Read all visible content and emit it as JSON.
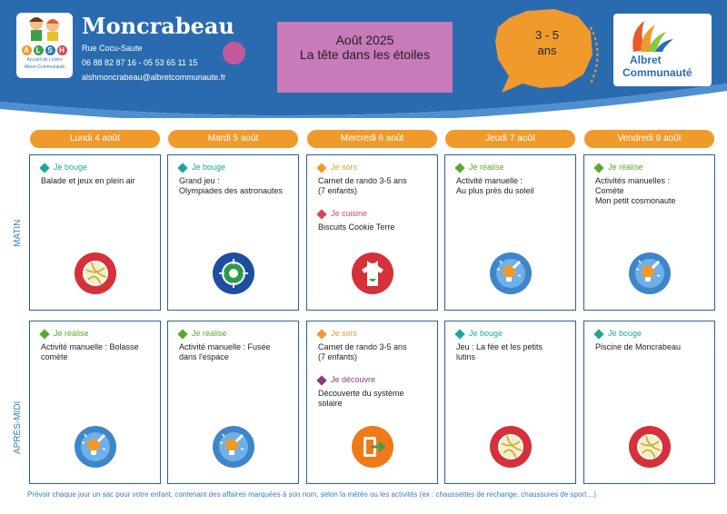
{
  "header": {
    "name": "Moncrabeau",
    "address": "Rue Cocu-Saute",
    "phones": "06 88 82 87 16 - 05 53 65 11 15",
    "email": "alshmoncrabeau@albretcommunaute.fr",
    "logo_left": {
      "letters": [
        "A",
        "L",
        "S",
        "H"
      ],
      "subtitle1": "Accueil de Loisirs",
      "subtitle2": "Albret Communauté"
    },
    "theme_month": "Août 2025",
    "theme_title": "La tête dans les étoiles",
    "age_line1": "3 - 5",
    "age_line2": "ans",
    "logo_right_line1": "Albret",
    "logo_right_line2": "Communauté"
  },
  "colors": {
    "blue": "#2a6bb0",
    "orange": "#f09a2c",
    "pink": "#c97ab8",
    "bouge": "#1aa89a",
    "realise": "#5aa832",
    "sors": "#f09a2c",
    "cuisine": "#d6455a",
    "decouvre": "#8a3b7a"
  },
  "days": [
    "Lundi 4 août",
    "Mardi 5 août",
    "Mercredi 6 août",
    "Jeudi 7 août",
    "Vendredi 8 août"
  ],
  "sides": {
    "morning": "MATIN",
    "afternoon": "APRÈS-MIDI"
  },
  "morning": [
    {
      "items": [
        {
          "cat": "Je bouge",
          "color": "bouge",
          "desc": [
            "Balade et jeux en plein air"
          ]
        }
      ],
      "icon": "ball-icon"
    },
    {
      "items": [
        {
          "cat": "Je bouge",
          "color": "bouge",
          "desc": [
            "Grand jeu :",
            "Olympiades des astronautes"
          ]
        }
      ],
      "icon": "target-icon"
    },
    {
      "items": [
        {
          "cat": "Je sors",
          "color": "sors",
          "desc": [
            "Carnet de rando 3-5 ans",
            "(7 enfants)"
          ]
        },
        {
          "cat": "Je cuisine",
          "color": "cuisine",
          "desc": [
            "Biscuits Cookie Terre"
          ]
        }
      ],
      "icon": "apron-icon"
    },
    {
      "items": [
        {
          "cat": "Je réalise",
          "color": "realise",
          "desc": [
            "Activité manuelle :",
            "Au plus près du soleil"
          ]
        }
      ],
      "icon": "idea-icon"
    },
    {
      "items": [
        {
          "cat": "Je réalise",
          "color": "realise",
          "desc": [
            "Activités manuelles :",
            "Comète",
            "Mon petit cosmonaute"
          ]
        }
      ],
      "icon": "idea-icon"
    }
  ],
  "afternoon": [
    {
      "items": [
        {
          "cat": "Je réalise",
          "color": "realise",
          "desc": [
            "Activité manuelle : Bolasse",
            "comète"
          ]
        }
      ],
      "icon": "idea-icon"
    },
    {
      "items": [
        {
          "cat": "Je réalise",
          "color": "realise",
          "desc": [
            "Activité manuelle : Fusée",
            "dans l'espace"
          ]
        }
      ],
      "icon": "idea-icon"
    },
    {
      "items": [
        {
          "cat": "Je sors",
          "color": "sors",
          "desc": [
            "Carnet de rando 3-5 ans",
            "(7 enfants)"
          ]
        },
        {
          "cat": "Je découvre",
          "color": "decouvre",
          "desc": [
            "Découverte du système",
            "solaire"
          ]
        }
      ],
      "icon": "exit-icon"
    },
    {
      "items": [
        {
          "cat": "Je bouge",
          "color": "bouge",
          "desc": [
            "Jeu : La fée et les petits",
            "lutins"
          ]
        }
      ],
      "icon": "ball-icon"
    },
    {
      "items": [
        {
          "cat": "Je bouge",
          "color": "bouge",
          "desc": [
            "Piscine de Moncrabeau"
          ]
        }
      ],
      "icon": "ball-icon"
    }
  ],
  "footer": "Prévoir chaque jour un sac pour votre enfant, contenant des affaires marquées à son nom, selon la météo ou les activités (ex : chaussettes de rechange, chaussures de sport…)"
}
